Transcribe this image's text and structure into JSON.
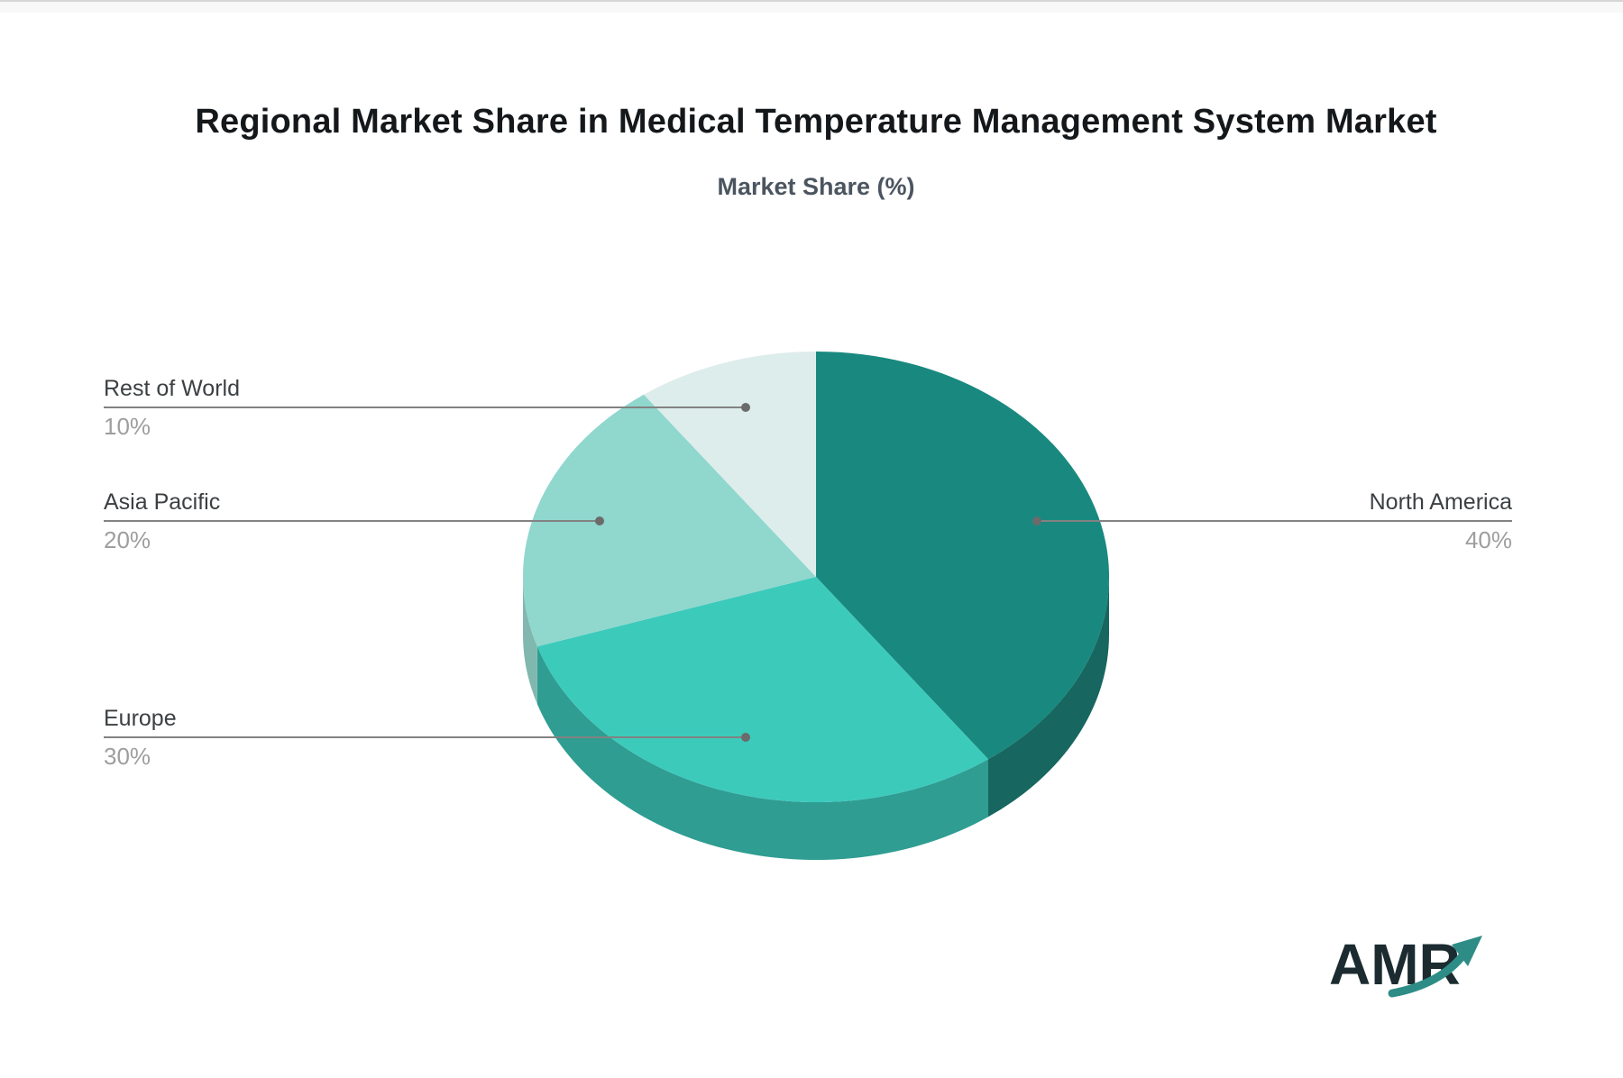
{
  "header": {
    "title": "Regional Market Share in Medical Temperature Management System Market",
    "subtitle": "Market Share (%)"
  },
  "chart_data": {
    "type": "pie",
    "title": "Regional Market Share in Medical Temperature Management System Market",
    "subtitle": "Market Share (%)",
    "unit": "%",
    "effect": "3d",
    "direction": "clockwise",
    "start_angle_deg": 0,
    "legend_position": "callout-labels",
    "series": [
      {
        "label": "North America",
        "value": 40,
        "display": "40%",
        "color": "#19897f",
        "side_color": "#176760"
      },
      {
        "label": "Europe",
        "value": 30,
        "display": "30%",
        "color": "#3ccabb",
        "side_color": "#2f9d92"
      },
      {
        "label": "Asia Pacific",
        "value": 20,
        "display": "20%",
        "color": "#90d7ce",
        "side_color": "#80b8af"
      },
      {
        "label": "Rest of World",
        "value": 10,
        "display": "10%",
        "color": "#ddedeb",
        "side_color": "#bcd9d5"
      }
    ]
  },
  "colors": {
    "leader_line": "#828282",
    "dot": "#6b6b6b",
    "label_text": "#3c4043",
    "pct_text": "#9e9e9e",
    "title_text": "#14181b",
    "subtitle_text": "#4b5560"
  },
  "logo": {
    "text": "AMR",
    "text_color": "#1b2b30",
    "arrow_color": "#2d8c86"
  }
}
